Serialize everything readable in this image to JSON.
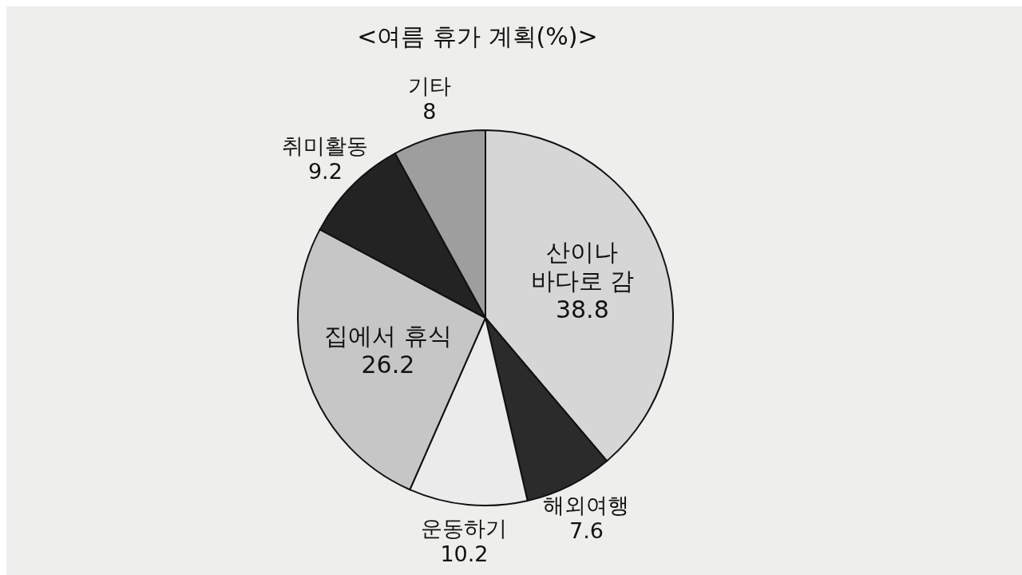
{
  "chart_data": {
    "type": "pie",
    "title": "<여름 휴가 계획(%)>",
    "categories": [
      "산이나 바다로 감",
      "해외여행",
      "운동하기",
      "집에서 휴식",
      "취미활동",
      "기타"
    ],
    "values": [
      38.8,
      7.6,
      10.2,
      26.2,
      9.2,
      8
    ],
    "colors": [
      "#d6d6d6",
      "#2b2b2b",
      "#ebebeb",
      "#c6c6c6",
      "#232323",
      "#9e9e9e"
    ],
    "data_labels": true
  }
}
